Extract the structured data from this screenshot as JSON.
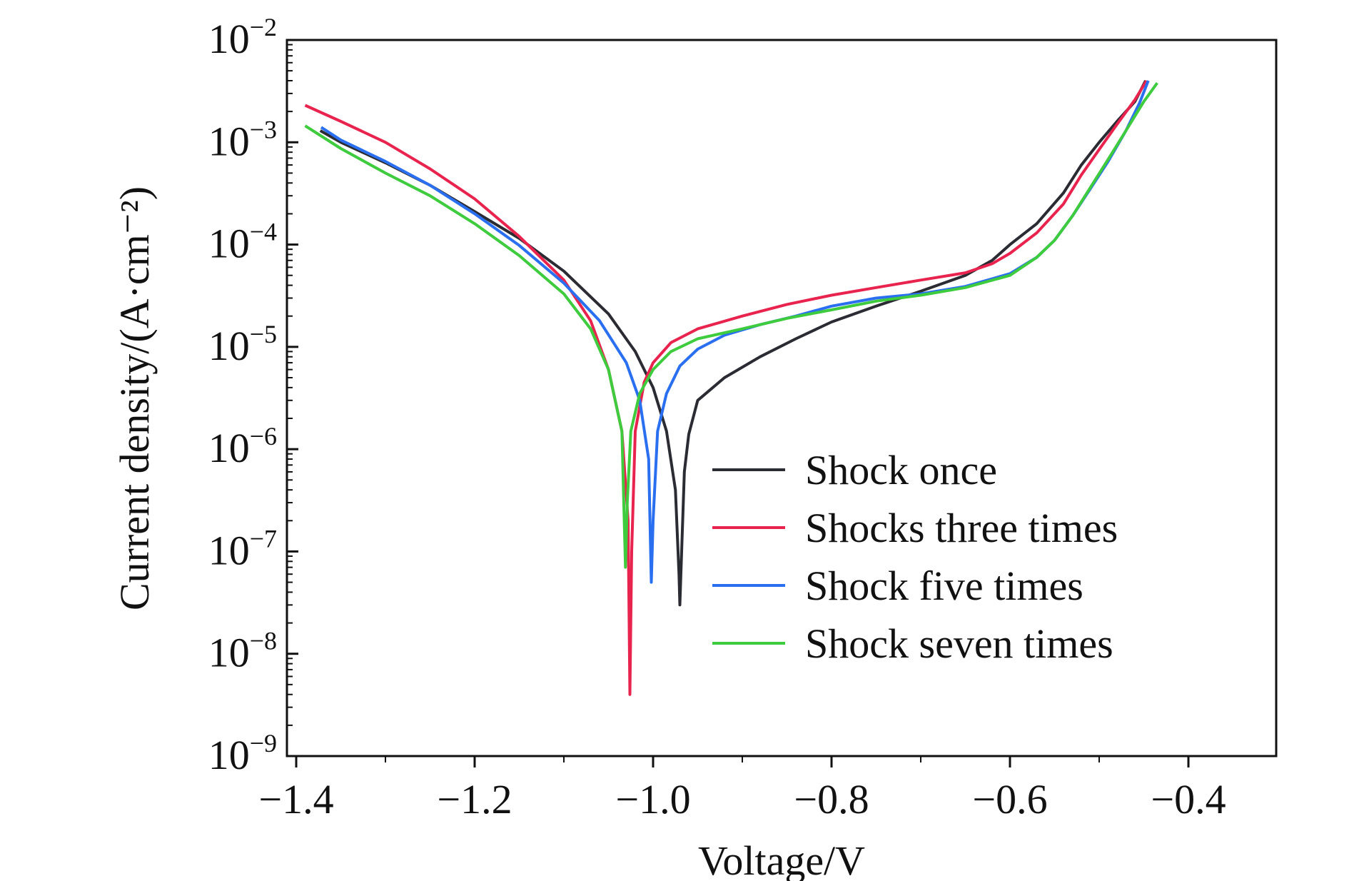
{
  "chart_data": {
    "type": "line",
    "title": "",
    "xlabel": "Voltage/V",
    "ylabel": "Current density/(A·cm⁻²)",
    "xlim": [
      -1.4,
      -0.4
    ],
    "ylim": [
      1e-09,
      0.01
    ],
    "yscale": "log",
    "x_ticks": [
      -1.4,
      -1.2,
      -1.0,
      -0.8,
      -0.6,
      -0.4
    ],
    "x_tick_labels": [
      "−1.4",
      "−1.2",
      "−1.0",
      "−0.8",
      "−0.6",
      "−0.4"
    ],
    "y_tick_labels": [
      {
        "base": "10",
        "exp": "−2"
      },
      {
        "base": "10",
        "exp": "−3"
      },
      {
        "base": "10",
        "exp": "−4"
      },
      {
        "base": "10",
        "exp": "−5"
      },
      {
        "base": "10",
        "exp": "−6"
      },
      {
        "base": "10",
        "exp": "−7"
      },
      {
        "base": "10",
        "exp": "−8"
      },
      {
        "base": "10",
        "exp": "−9"
      }
    ],
    "y_exponents": [
      -2,
      -3,
      -4,
      -5,
      -6,
      -7,
      -8,
      -9
    ],
    "grid": false,
    "legend_position": "lower-right",
    "series": [
      {
        "name": "Shock once",
        "color": "#2b2b33",
        "points": [
          [
            -1.373,
            0.0013
          ],
          [
            -1.35,
            0.001
          ],
          [
            -1.3,
            0.00063
          ],
          [
            -1.25,
            0.00038
          ],
          [
            -1.2,
            0.00021
          ],
          [
            -1.15,
            0.000115
          ],
          [
            -1.1,
            5.5e-05
          ],
          [
            -1.05,
            2.1e-05
          ],
          [
            -1.02,
            9e-06
          ],
          [
            -1.0,
            4e-06
          ],
          [
            -0.985,
            1.5e-06
          ],
          [
            -0.975,
            4e-07
          ],
          [
            -0.971,
            6e-08
          ],
          [
            -0.97,
            3e-08
          ],
          [
            -0.968,
            1e-07
          ],
          [
            -0.965,
            6e-07
          ],
          [
            -0.96,
            1.4e-06
          ],
          [
            -0.95,
            3e-06
          ],
          [
            -0.92,
            5e-06
          ],
          [
            -0.88,
            8e-06
          ],
          [
            -0.84,
            1.2e-05
          ],
          [
            -0.8,
            1.75e-05
          ],
          [
            -0.75,
            2.5e-05
          ],
          [
            -0.7,
            3.5e-05
          ],
          [
            -0.65,
            5e-05
          ],
          [
            -0.62,
            7e-05
          ],
          [
            -0.6,
            0.0001
          ],
          [
            -0.57,
            0.00016
          ],
          [
            -0.54,
            0.00032
          ],
          [
            -0.52,
            0.0006
          ],
          [
            -0.5,
            0.001
          ],
          [
            -0.48,
            0.0016
          ],
          [
            -0.46,
            0.0025
          ],
          [
            -0.448,
            0.004
          ]
        ]
      },
      {
        "name": "Shocks three times",
        "color": "#e8244e",
        "points": [
          [
            -1.39,
            0.0023
          ],
          [
            -1.35,
            0.0016
          ],
          [
            -1.3,
            0.001
          ],
          [
            -1.25,
            0.00055
          ],
          [
            -1.2,
            0.00028
          ],
          [
            -1.15,
            0.00012
          ],
          [
            -1.1,
            4.5e-05
          ],
          [
            -1.07,
            1.8e-05
          ],
          [
            -1.05,
            6e-06
          ],
          [
            -1.035,
            1.5e-06
          ],
          [
            -1.028,
            2e-07
          ],
          [
            -1.026,
            4e-09
          ],
          [
            -1.024,
            1e-07
          ],
          [
            -1.02,
            1.5e-06
          ],
          [
            -1.01,
            4.5e-06
          ],
          [
            -1.0,
            7e-06
          ],
          [
            -0.98,
            1.1e-05
          ],
          [
            -0.95,
            1.5e-05
          ],
          [
            -0.9,
            2e-05
          ],
          [
            -0.85,
            2.6e-05
          ],
          [
            -0.8,
            3.2e-05
          ],
          [
            -0.75,
            3.8e-05
          ],
          [
            -0.7,
            4.5e-05
          ],
          [
            -0.65,
            5.3e-05
          ],
          [
            -0.62,
            6.5e-05
          ],
          [
            -0.6,
            8.2e-05
          ],
          [
            -0.57,
            0.00013
          ],
          [
            -0.54,
            0.00025
          ],
          [
            -0.52,
            0.00048
          ],
          [
            -0.5,
            0.00085
          ],
          [
            -0.48,
            0.0015
          ],
          [
            -0.46,
            0.0026
          ],
          [
            -0.447,
            0.004
          ]
        ]
      },
      {
        "name": "Shock five times",
        "color": "#2a6ff0",
        "points": [
          [
            -1.372,
            0.0014
          ],
          [
            -1.35,
            0.00105
          ],
          [
            -1.3,
            0.00065
          ],
          [
            -1.25,
            0.00038
          ],
          [
            -1.2,
            0.0002
          ],
          [
            -1.15,
            9.8e-05
          ],
          [
            -1.1,
            4.2e-05
          ],
          [
            -1.06,
            1.8e-05
          ],
          [
            -1.03,
            7e-06
          ],
          [
            -1.015,
            3e-06
          ],
          [
            -1.005,
            8e-07
          ],
          [
            -1.002,
            5e-08
          ],
          [
            -1.0,
            2e-07
          ],
          [
            -0.995,
            1.5e-06
          ],
          [
            -0.985,
            3.5e-06
          ],
          [
            -0.97,
            6.5e-06
          ],
          [
            -0.95,
            9.5e-06
          ],
          [
            -0.92,
            1.3e-05
          ],
          [
            -0.88,
            1.65e-05
          ],
          [
            -0.84,
            2e-05
          ],
          [
            -0.8,
            2.5e-05
          ],
          [
            -0.75,
            3e-05
          ],
          [
            -0.7,
            3.3e-05
          ],
          [
            -0.65,
            3.9e-05
          ],
          [
            -0.6,
            5.2e-05
          ],
          [
            -0.57,
            7.5e-05
          ],
          [
            -0.55,
            0.00011
          ],
          [
            -0.53,
            0.00019
          ],
          [
            -0.51,
            0.00035
          ],
          [
            -0.49,
            0.00065
          ],
          [
            -0.47,
            0.0013
          ],
          [
            -0.455,
            0.0024
          ],
          [
            -0.445,
            0.004
          ]
        ]
      },
      {
        "name": "Shock seven times",
        "color": "#3ecc3e",
        "points": [
          [
            -1.39,
            0.00145
          ],
          [
            -1.35,
            0.00087
          ],
          [
            -1.3,
            0.0005
          ],
          [
            -1.25,
            0.0003
          ],
          [
            -1.2,
            0.00016
          ],
          [
            -1.15,
            7.8e-05
          ],
          [
            -1.1,
            3.3e-05
          ],
          [
            -1.07,
            1.5e-05
          ],
          [
            -1.05,
            6e-06
          ],
          [
            -1.035,
            1.5e-06
          ],
          [
            -1.031,
            7e-08
          ],
          [
            -1.029,
            3e-07
          ],
          [
            -1.025,
            1.5e-06
          ],
          [
            -1.015,
            3.5e-06
          ],
          [
            -1.0,
            6e-06
          ],
          [
            -0.98,
            9e-06
          ],
          [
            -0.95,
            1.2e-05
          ],
          [
            -0.9,
            1.5e-05
          ],
          [
            -0.85,
            1.9e-05
          ],
          [
            -0.8,
            2.3e-05
          ],
          [
            -0.75,
            2.8e-05
          ],
          [
            -0.7,
            3.2e-05
          ],
          [
            -0.65,
            3.8e-05
          ],
          [
            -0.6,
            5e-05
          ],
          [
            -0.57,
            7.5e-05
          ],
          [
            -0.55,
            0.00011
          ],
          [
            -0.53,
            0.00019
          ],
          [
            -0.51,
            0.00036
          ],
          [
            -0.49,
            0.00068
          ],
          [
            -0.47,
            0.0013
          ],
          [
            -0.45,
            0.0025
          ],
          [
            -0.435,
            0.0038
          ]
        ]
      }
    ]
  }
}
